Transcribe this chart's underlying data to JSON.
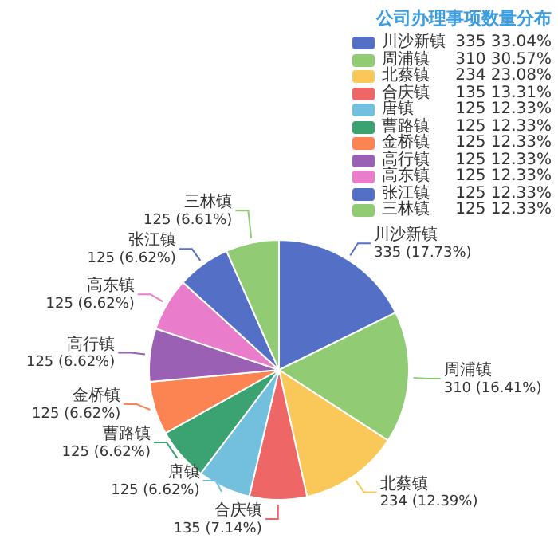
{
  "chart_data": {
    "type": "pie",
    "title": "公司办理事项数量分布",
    "categories": [
      "川沙新镇",
      "周浦镇",
      "北蔡镇",
      "合庆镇",
      "唐镇",
      "曹路镇",
      "金桥镇",
      "高行镇",
      "高东镇",
      "张江镇",
      "三林镇"
    ],
    "values": [
      335,
      310,
      234,
      135,
      125,
      125,
      125,
      125,
      125,
      125,
      125
    ],
    "colors": [
      "#5470c6",
      "#91cc75",
      "#fac858",
      "#ee6666",
      "#73c0de",
      "#3ba272",
      "#fc8452",
      "#9a60b4",
      "#ea7ccc",
      "#5470c6",
      "#91cc75"
    ],
    "value_labels": [
      "335 (17.73%)",
      "310 (16.41%)",
      "234 (12.39%)",
      "135 (7.14%)",
      "125 (6.62%)",
      "125 (6.62%)",
      "125 (6.62%)",
      "125 (6.62%)",
      "125 (6.62%)",
      "125 (6.62%)",
      "125 (6.61%)"
    ],
    "annotations": [
      "335 33.04%",
      "310 30.57%",
      "234 23.08%",
      "135 13.31%",
      "125 12.33%",
      "125 12.33%",
      "125 12.33%",
      "125 12.33%",
      "125 12.33%",
      "125 12.33%",
      "125 12.33%"
    ],
    "legend": "top right"
  }
}
